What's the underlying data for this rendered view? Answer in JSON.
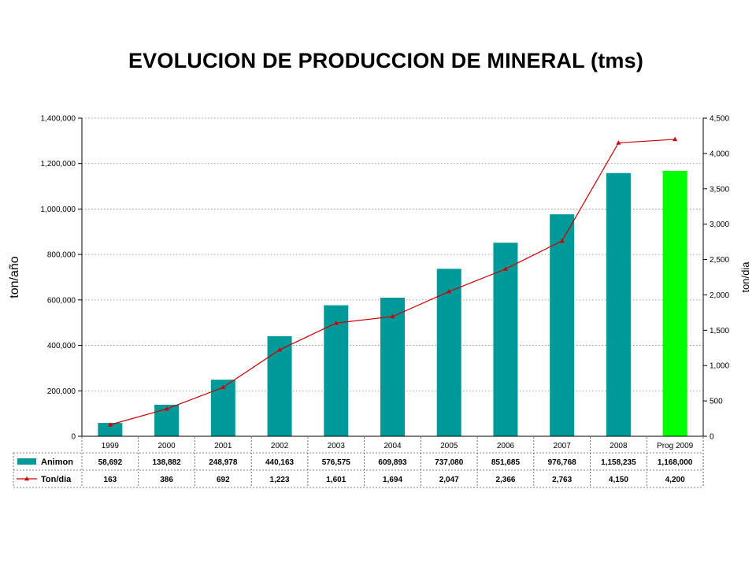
{
  "title": "EVOLUCION DE PRODUCCION DE MINERAL (tms)",
  "chart_data": {
    "type": "bar",
    "title": "EVOLUCION DE PRODUCCION DE MINERAL (tms)",
    "categories": [
      "1999",
      "2000",
      "2001",
      "2002",
      "2003",
      "2004",
      "2005",
      "2006",
      "2007",
      "2008",
      "Prog 2009"
    ],
    "series": [
      {
        "name": "Animon",
        "type": "bar",
        "axis": "left",
        "color": "#009999",
        "highlight": {
          "index": 10,
          "color": "#00ff00"
        },
        "values": [
          58692,
          138882,
          248978,
          440163,
          576575,
          609893,
          737080,
          851685,
          976768,
          1158235,
          1168000
        ],
        "labels": [
          "58,692",
          "138,882",
          "248,978",
          "440,163",
          "576,575",
          "609,893",
          "737,080",
          "851,685",
          "976,768",
          "1,158,235",
          "1,168,000"
        ]
      },
      {
        "name": "Ton/dia",
        "type": "line",
        "axis": "right",
        "color": "#cc0000",
        "marker": "triangle",
        "values": [
          163,
          386,
          692,
          1223,
          1601,
          1694,
          2047,
          2366,
          2763,
          4150,
          4200
        ],
        "labels": [
          "163",
          "386",
          "692",
          "1,223",
          "1,601",
          "1,694",
          "2,047",
          "2,366",
          "2,763",
          "4,150",
          "4,200"
        ]
      }
    ],
    "ylabel": "ton/año",
    "y2label": "ton/dia",
    "ylim": [
      0,
      1400000
    ],
    "y2lim": [
      0,
      4500
    ],
    "yticks": [
      "0",
      "200,000",
      "400,000",
      "600,000",
      "800,000",
      "1,000,000",
      "1,200,000",
      "1,400,000"
    ],
    "y2ticks": [
      "0",
      "500",
      "1,000",
      "1,500",
      "2,000",
      "2,500",
      "3,000",
      "3,500",
      "4,000",
      "4,500"
    ],
    "grid": "horizontal dotted",
    "legend": "data table below chart"
  }
}
